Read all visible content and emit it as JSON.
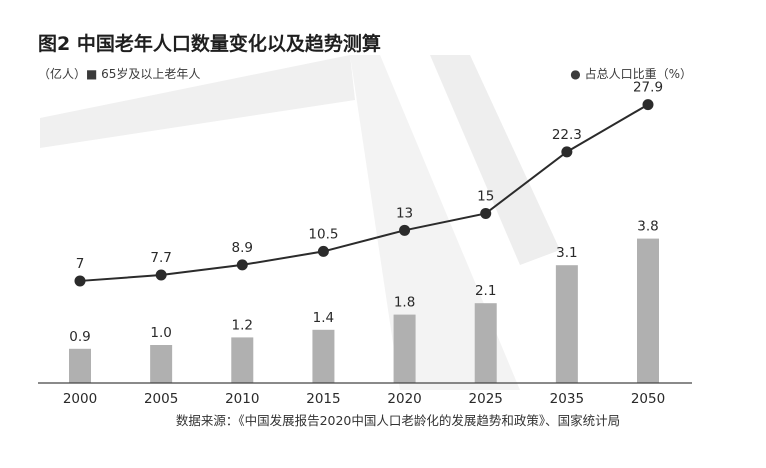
{
  "chart_data": {
    "type": "bar",
    "title": "图2 中国老年人口数量变化以及趋势测算",
    "categories": [
      "2000",
      "2005",
      "2010",
      "2015",
      "2020",
      "2025",
      "2035",
      "2050"
    ],
    "series": [
      {
        "name": "（亿人）■ 65岁及以上老年人",
        "type": "bar",
        "color": "#b0b0b0",
        "values": [
          0.9,
          1.0,
          1.2,
          1.4,
          1.8,
          2.1,
          3.1,
          3.8
        ],
        "labels": [
          "0.9",
          "1.0",
          "1.2",
          "1.4",
          "1.8",
          "2.1",
          "3.1",
          "3.8"
        ]
      },
      {
        "name": "● 占总人口比重（%）",
        "type": "line",
        "color": "#2b2b2b",
        "values": [
          7,
          7.7,
          8.9,
          10.5,
          13,
          15,
          22.3,
          27.9
        ],
        "labels": [
          "7",
          "7.7",
          "8.9",
          "10.5",
          "13",
          "15",
          "22.3",
          "27.9"
        ]
      }
    ],
    "bar_ylim": [
      0,
      6
    ],
    "line_ylim": [
      0,
      32
    ],
    "grid": false,
    "legend_placement": "top"
  },
  "source": "数据来源：《中国发展报告2020中国人口老龄化的发展趋势和政策》、国家统计局"
}
